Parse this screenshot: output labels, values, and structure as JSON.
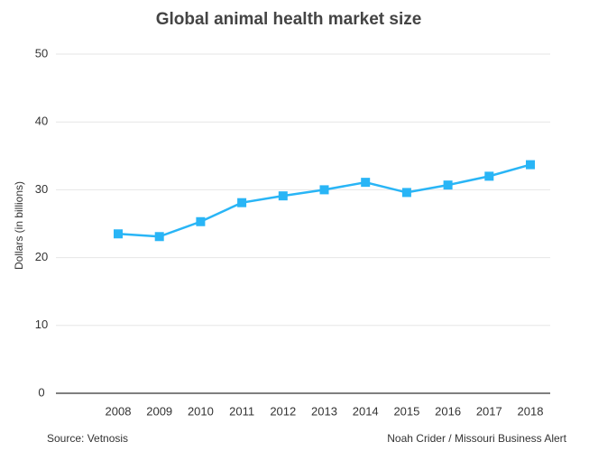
{
  "chart_data": {
    "type": "line",
    "title": "Global animal health market size",
    "y_label": "Dollars (in billions)",
    "source": "Source: Vetnosis",
    "credit": "Noah Crider / Missouri Business Alert",
    "categories": [
      "2008",
      "2009",
      "2010",
      "2011",
      "2012",
      "2013",
      "2014",
      "2015",
      "2016",
      "2017",
      "2018"
    ],
    "values": [
      23.5,
      23.1,
      25.3,
      28.1,
      29.1,
      30.0,
      31.1,
      29.6,
      30.7,
      32.0,
      33.7
    ],
    "color": "#29b5f6",
    "ylim": [
      0,
      50
    ],
    "yticks": [
      0,
      10,
      20,
      30,
      40,
      50
    ],
    "grid": true
  }
}
